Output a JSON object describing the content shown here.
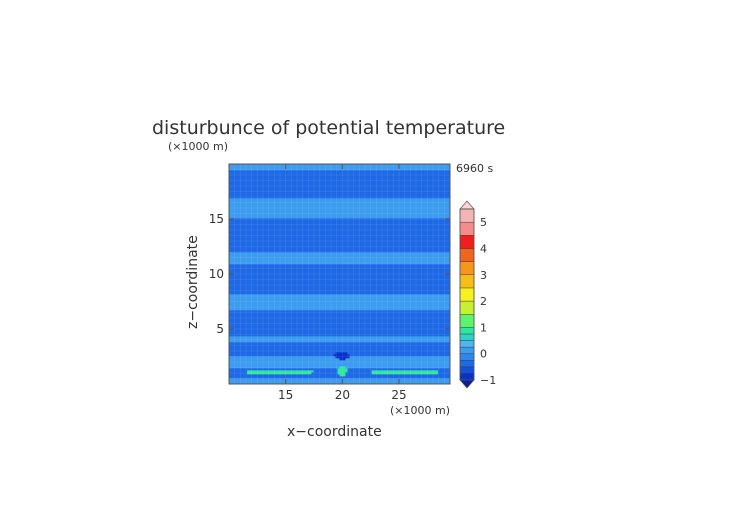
{
  "chart_data": {
    "type": "heatmap",
    "title": "disturbunce of potential temperature",
    "xlabel": "x−coordinate",
    "ylabel": "z−coordinate",
    "x_unit_label": "(×1000 m)",
    "y_unit_label": "(×1000 m)",
    "time_label": "6960 s",
    "xlim": [
      10,
      29.5
    ],
    "ylim": [
      0,
      20
    ],
    "x_ticks": [
      {
        "value": 15,
        "label": "15"
      },
      {
        "value": 20,
        "label": "20"
      },
      {
        "value": 25,
        "label": "25"
      }
    ],
    "y_ticks": [
      {
        "value": 5,
        "label": "5"
      },
      {
        "value": 10,
        "label": "10"
      },
      {
        "value": 15,
        "label": "15"
      }
    ],
    "colorbar": {
      "range": [
        -1,
        5
      ],
      "tick_values": [
        -1,
        0,
        1,
        2,
        3,
        4,
        5
      ],
      "tick_labels": [
        "−1",
        "0",
        "1",
        "2",
        "3",
        "4",
        "5"
      ],
      "extend": "both",
      "levels": [
        {
          "from": -1.0,
          "to": -0.75,
          "color": "#0b32c8"
        },
        {
          "from": -0.75,
          "to": -0.5,
          "color": "#1550dc"
        },
        {
          "from": -0.5,
          "to": -0.25,
          "color": "#1e69e6"
        },
        {
          "from": -0.25,
          "to": 0.0,
          "color": "#2d87ee"
        },
        {
          "from": 0.0,
          "to": 0.25,
          "color": "#3c9cf0"
        },
        {
          "from": 0.25,
          "to": 0.5,
          "color": "#4fb4f2"
        },
        {
          "from": 0.5,
          "to": 0.75,
          "color": "#2fd2c8"
        },
        {
          "from": 0.75,
          "to": 1.0,
          "color": "#2fe6a0"
        },
        {
          "from": 1.0,
          "to": 1.5,
          "color": "#5ff26c"
        },
        {
          "from": 1.5,
          "to": 2.0,
          "color": "#c8f032"
        },
        {
          "from": 2.0,
          "to": 2.5,
          "color": "#f5f01e"
        },
        {
          "from": 2.5,
          "to": 3.0,
          "color": "#f5be14"
        },
        {
          "from": 3.0,
          "to": 3.5,
          "color": "#f5961e"
        },
        {
          "from": 3.5,
          "to": 4.0,
          "color": "#f0641e"
        },
        {
          "from": 4.0,
          "to": 4.5,
          "color": "#f01e1e"
        },
        {
          "from": 4.5,
          "to": 5.0,
          "color": "#f58c8c"
        },
        {
          "from": 5.0,
          "to": 5.5,
          "color": "#f5b4b4"
        }
      ],
      "over_color": "#fcd2d2",
      "under_color": "#0a1e9e"
    },
    "field_features": [
      {
        "kind": "background",
        "value": 0.1
      },
      {
        "kind": "band",
        "z_center": 18.2,
        "z_halfwidth": 1.3,
        "value": -0.3
      },
      {
        "kind": "band",
        "z_center": 13.5,
        "z_halfwidth": 1.5,
        "value": -0.3
      },
      {
        "kind": "band",
        "z_center": 9.6,
        "z_halfwidth": 1.4,
        "value": -0.3
      },
      {
        "kind": "band",
        "z_center": 5.6,
        "z_halfwidth": 1.2,
        "value": -0.3
      },
      {
        "kind": "band",
        "z_center": 3.2,
        "z_halfwidth": 0.6,
        "value": -0.3
      },
      {
        "kind": "band",
        "z_center": 1.0,
        "z_halfwidth": 0.5,
        "value": -0.3
      },
      {
        "kind": "blob",
        "x": 20,
        "z": 2.6,
        "rx": 0.7,
        "rz": 0.35,
        "value": -0.9
      },
      {
        "kind": "blob",
        "x": 20,
        "z": 1.2,
        "rx": 0.4,
        "rz": 0.45,
        "value": 0.8
      },
      {
        "kind": "blob",
        "x": 14.5,
        "z": 1.1,
        "rx": 3.2,
        "rz": 0.22,
        "value": 0.8
      },
      {
        "kind": "blob",
        "x": 25.5,
        "z": 1.1,
        "rx": 3.2,
        "rz": 0.22,
        "value": 0.8
      }
    ]
  }
}
